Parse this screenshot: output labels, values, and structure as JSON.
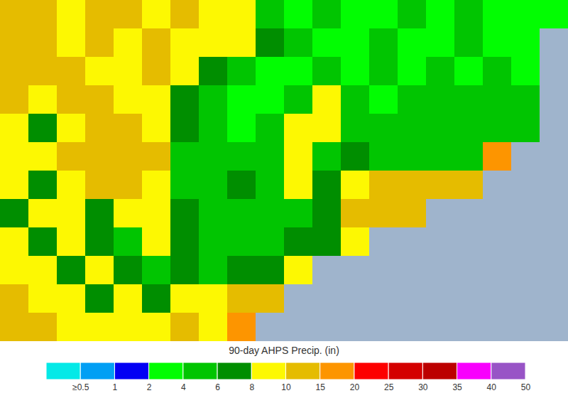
{
  "chart_data": {
    "type": "heatmap",
    "title": "90-day AHPS Precip. (in)",
    "tick_labels": false,
    "cells": [
      [
        12,
        12,
        9,
        12,
        12,
        9,
        12,
        9,
        9,
        5,
        3,
        5,
        3,
        3,
        5,
        3,
        5,
        3,
        3,
        3
      ],
      [
        12,
        12,
        9,
        12,
        9,
        12,
        9,
        9,
        9,
        7,
        5,
        3,
        3,
        5,
        3,
        3,
        5,
        3,
        3,
        null
      ],
      [
        12,
        12,
        12,
        9,
        9,
        12,
        9,
        7,
        5,
        3,
        3,
        5,
        3,
        5,
        3,
        5,
        3,
        5,
        3,
        null
      ],
      [
        12,
        9,
        12,
        12,
        9,
        9,
        7,
        5,
        3,
        3,
        5,
        9,
        5,
        3,
        5,
        5,
        5,
        5,
        5,
        null
      ],
      [
        9,
        7,
        9,
        12,
        12,
        9,
        7,
        5,
        3,
        5,
        9,
        9,
        5,
        5,
        5,
        5,
        5,
        5,
        5,
        null
      ],
      [
        9,
        9,
        12,
        12,
        12,
        12,
        5,
        5,
        5,
        5,
        9,
        5,
        7,
        5,
        5,
        5,
        5,
        17,
        null,
        null
      ],
      [
        9,
        7,
        9,
        12,
        12,
        9,
        5,
        5,
        7,
        5,
        9,
        7,
        9,
        12,
        12,
        12,
        12,
        null,
        null,
        null
      ],
      [
        7,
        9,
        9,
        7,
        9,
        9,
        7,
        5,
        5,
        5,
        5,
        7,
        12,
        12,
        12,
        null,
        null,
        null,
        null,
        null
      ],
      [
        9,
        7,
        9,
        7,
        5,
        9,
        7,
        5,
        5,
        5,
        7,
        7,
        9,
        null,
        null,
        null,
        null,
        null,
        null,
        null
      ],
      [
        9,
        9,
        7,
        9,
        7,
        5,
        7,
        5,
        7,
        7,
        9,
        null,
        null,
        null,
        null,
        null,
        null,
        null,
        null,
        null
      ],
      [
        12,
        9,
        9,
        7,
        9,
        7,
        9,
        9,
        12,
        12,
        null,
        null,
        null,
        null,
        null,
        null,
        null,
        null,
        null,
        null
      ],
      [
        12,
        12,
        9,
        9,
        9,
        9,
        12,
        9,
        17,
        null,
        null,
        null,
        null,
        null,
        null,
        null,
        null,
        null,
        null,
        null
      ]
    ],
    "colorbar": {
      "ticks": [
        {
          "value": 0.5,
          "label": "≥0.5"
        },
        1,
        2,
        4,
        6,
        8,
        10,
        15,
        20,
        25,
        30,
        35,
        40,
        50
      ],
      "colors": [
        "#04e9e7",
        "#019ff4",
        "#0300f4",
        "#02fd02",
        "#01c501",
        "#008e00",
        "#fdf802",
        "#e5bc00",
        "#fd9500",
        "#fd0000",
        "#d40000",
        "#bc0000",
        "#f800fd",
        "#9854c6"
      ]
    }
  }
}
